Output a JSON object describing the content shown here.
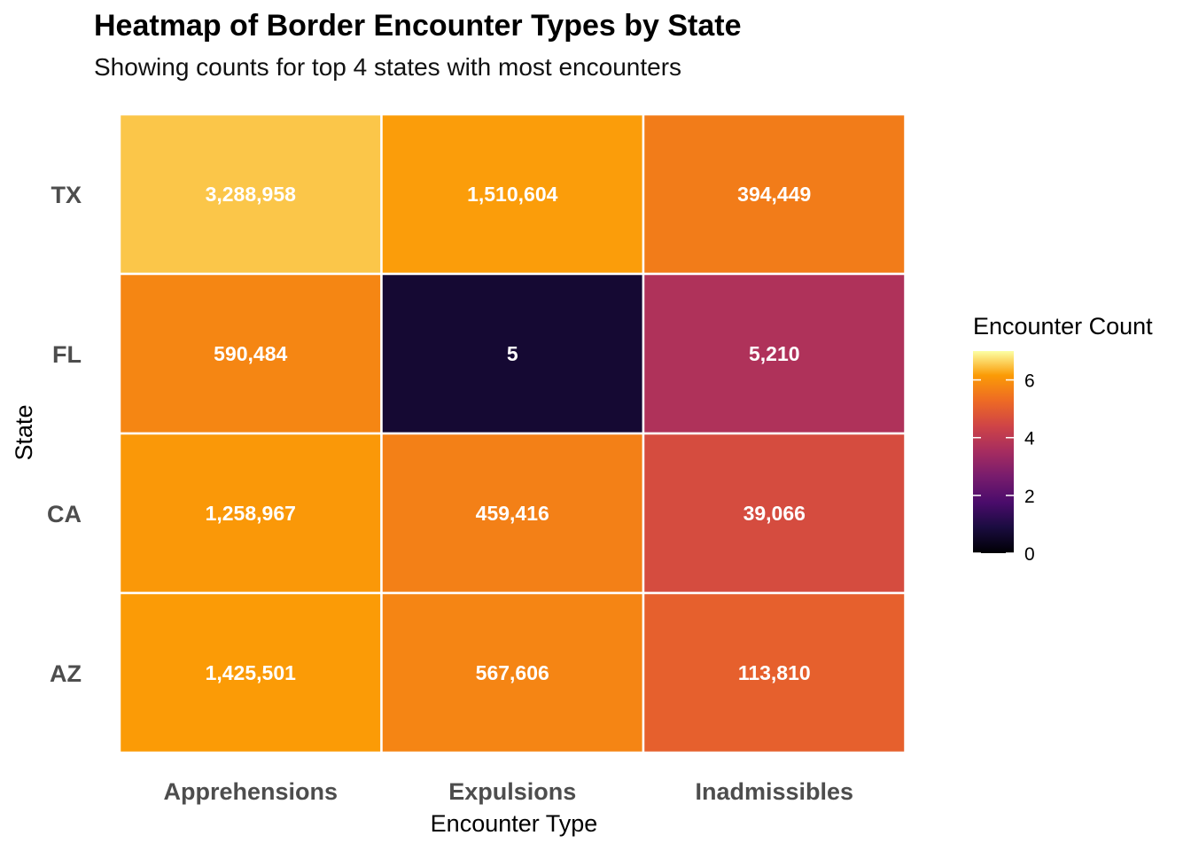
{
  "title": "Heatmap of Border Encounter Types by State",
  "subtitle": "Showing counts for top 4 states with most encounters",
  "chart_data": {
    "type": "heatmap",
    "xlabel": "Encounter Type",
    "ylabel": "State",
    "x_categories": [
      "Apprehensions",
      "Expulsions",
      "Inadmissibles"
    ],
    "y_categories": [
      "TX",
      "FL",
      "CA",
      "AZ"
    ],
    "values": [
      [
        3288958,
        1510604,
        394449
      ],
      [
        590484,
        5,
        5210
      ],
      [
        1258967,
        459416,
        39066
      ],
      [
        1425501,
        567606,
        113810
      ]
    ],
    "labels": [
      [
        "3,288,958",
        "1,510,604",
        "394,449"
      ],
      [
        "590,484",
        "5",
        "5,210"
      ],
      [
        "1,258,967",
        "459,416",
        "39,066"
      ],
      [
        "1,425,501",
        "567,606",
        "113,810"
      ]
    ],
    "color_scale": "log10",
    "legend": {
      "title": "Encounter Count",
      "ticks": [
        0,
        2,
        4,
        6
      ],
      "range": [
        0,
        7
      ],
      "placement": "right"
    },
    "palette": "inferno",
    "grid": false
  }
}
